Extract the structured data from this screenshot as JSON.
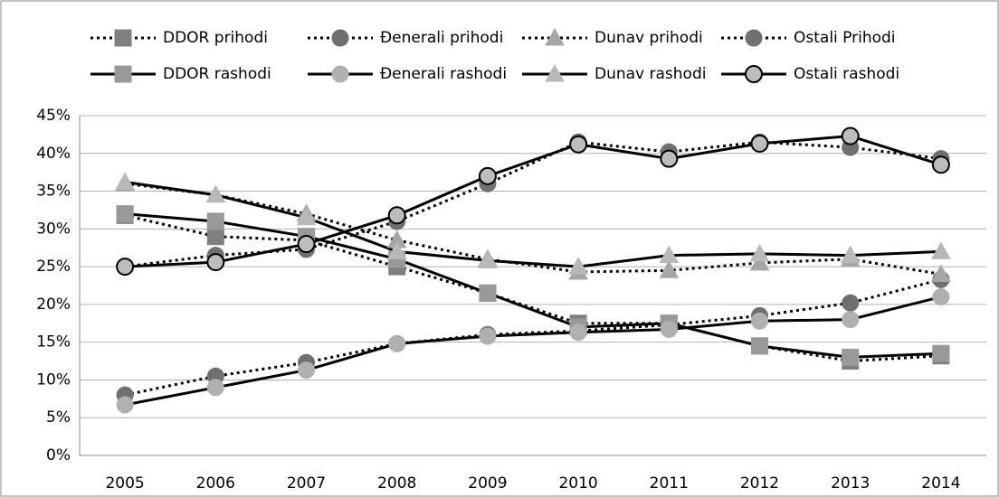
{
  "chart_data": {
    "type": "line",
    "categories": [
      "2005",
      "2006",
      "2007",
      "2008",
      "2009",
      "2010",
      "2011",
      "2012",
      "2013",
      "2014"
    ],
    "line_color": "#000000",
    "series": [
      {
        "name": "DDOR prihodi",
        "color": "#7f7f7f",
        "marker": "square",
        "dashed": true,
        "values": [
          31.8,
          29,
          28.5,
          25,
          21.5,
          17.5,
          17.5,
          14.5,
          12.5,
          13.2
        ]
      },
      {
        "name": "Đenerali prihodi",
        "color": "#6f6f6f",
        "marker": "circle",
        "dashed": true,
        "values": [
          8,
          10.5,
          12.3,
          14.8,
          16,
          16.5,
          17.3,
          18.5,
          20.2,
          23.3
        ]
      },
      {
        "name": "Dunav prihodi",
        "color": "#a6a6a6",
        "marker": "triangle",
        "dashed": true,
        "values": [
          36,
          34.5,
          32,
          28.5,
          26,
          24.3,
          24.5,
          25.5,
          26,
          24
        ]
      },
      {
        "name": "Ostali Prihodi",
        "color": "#707070",
        "marker": "circle",
        "dashed": true,
        "values": [
          25,
          26.5,
          27.3,
          31,
          36,
          41.5,
          40.2,
          41.5,
          40.8,
          39.3
        ]
      },
      {
        "name": "DDOR rashodi",
        "color": "#999999",
        "marker": "square",
        "dashed": false,
        "values": [
          32,
          31,
          29,
          26,
          21.5,
          17,
          17.5,
          14.5,
          13,
          13.5
        ]
      },
      {
        "name": "Đenerali rashodi",
        "color": "#b0b0b0",
        "marker": "circle",
        "dashed": false,
        "values": [
          6.7,
          9,
          11.3,
          14.8,
          15.8,
          16.3,
          16.7,
          17.8,
          18,
          21
        ]
      },
      {
        "name": "Dunav rashodi",
        "color": "#b8b8b8",
        "marker": "triangle",
        "dashed": false,
        "values": [
          36.2,
          34.5,
          31.5,
          27,
          25.8,
          25,
          26.5,
          26.7,
          26.5,
          27
        ]
      },
      {
        "name": "Ostali rashodi",
        "color": "#bdbdbd",
        "marker": "circle-outlined",
        "dashed": false,
        "values": [
          25,
          25.6,
          28,
          31.8,
          37,
          41.2,
          39.3,
          41.3,
          42.3,
          38.5
        ]
      }
    ],
    "ylim": [
      0,
      45
    ],
    "yticks": [
      {
        "value": 0,
        "label": "0%"
      },
      {
        "value": 5,
        "label": "5%"
      },
      {
        "value": 10,
        "label": "10%"
      },
      {
        "value": 15,
        "label": "15%"
      },
      {
        "value": 20,
        "label": "20%"
      },
      {
        "value": 25,
        "label": "25%"
      },
      {
        "value": 30,
        "label": "30%"
      },
      {
        "value": 35,
        "label": "35%"
      },
      {
        "value": 40,
        "label": "40%"
      },
      {
        "value": 45,
        "label": "45%"
      }
    ],
    "grid": true
  }
}
